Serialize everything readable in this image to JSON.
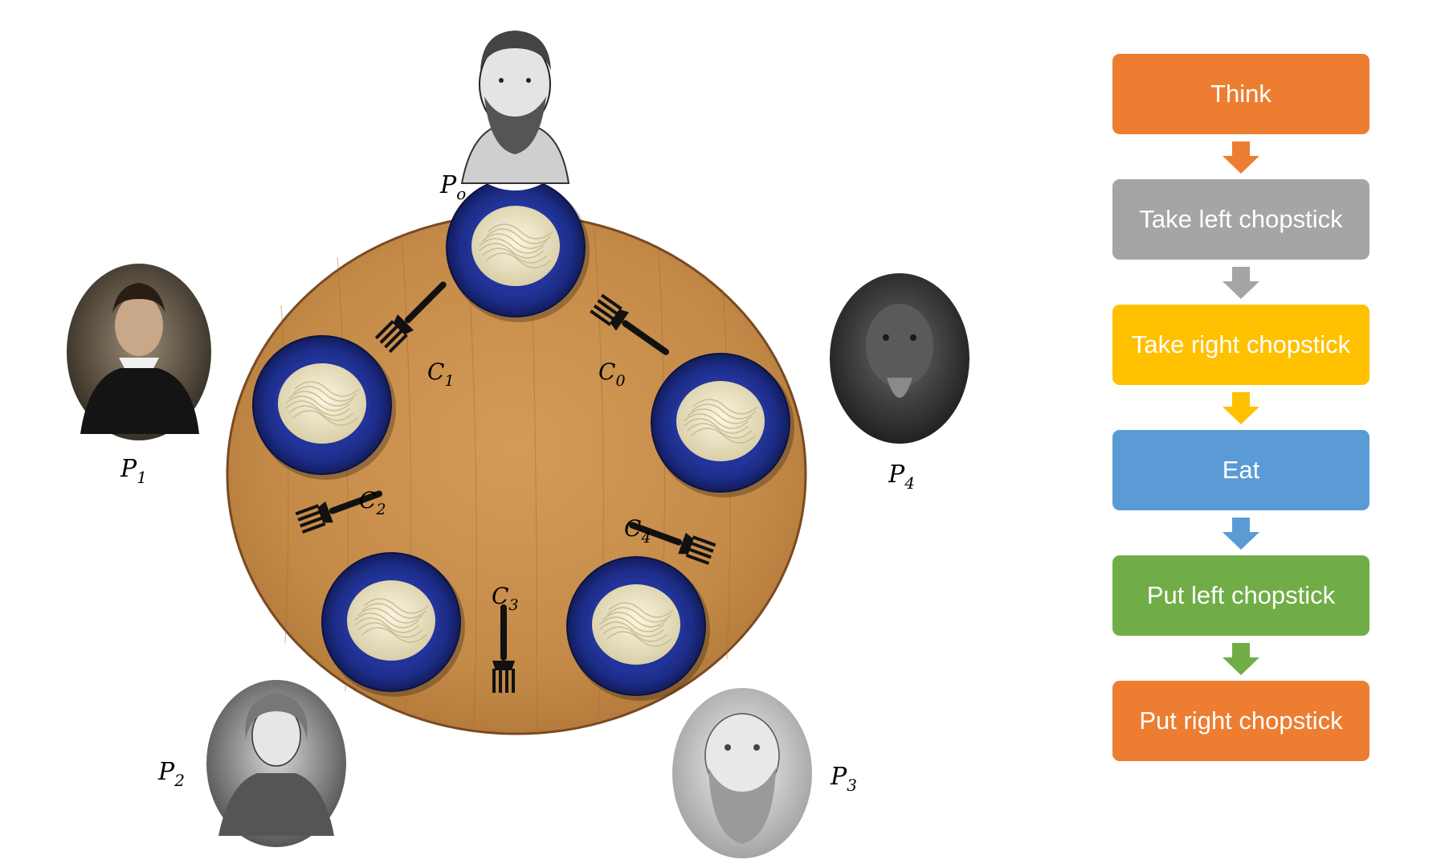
{
  "table": {
    "philosophers": [
      {
        "label": "P",
        "sub": "o"
      },
      {
        "label": "P",
        "sub": "1"
      },
      {
        "label": "P",
        "sub": "2"
      },
      {
        "label": "P",
        "sub": "3"
      },
      {
        "label": "P",
        "sub": "4"
      }
    ],
    "chopsticks": [
      {
        "label": "C",
        "sub": "0"
      },
      {
        "label": "C",
        "sub": "1"
      },
      {
        "label": "C",
        "sub": "2"
      },
      {
        "label": "C",
        "sub": "3"
      },
      {
        "label": "C",
        "sub": "4"
      }
    ]
  },
  "flow": {
    "steps": [
      {
        "label": "Think",
        "color": "#ED7D31"
      },
      {
        "label": "Take left chopstick",
        "color": "#A5A5A5"
      },
      {
        "label": "Take right chopstick",
        "color": "#FFC000"
      },
      {
        "label": "Eat",
        "color": "#5B9BD5"
      },
      {
        "label": "Put left chopstick",
        "color": "#70AD47"
      },
      {
        "label": "Put right chopstick",
        "color": "#ED7D31"
      }
    ]
  },
  "colors": {
    "table_wood": "#C48A48",
    "table_rim": "#7A4A22",
    "plate": "#1E2E8C",
    "noodle": "#EDE6C8",
    "fork": "#111111"
  }
}
